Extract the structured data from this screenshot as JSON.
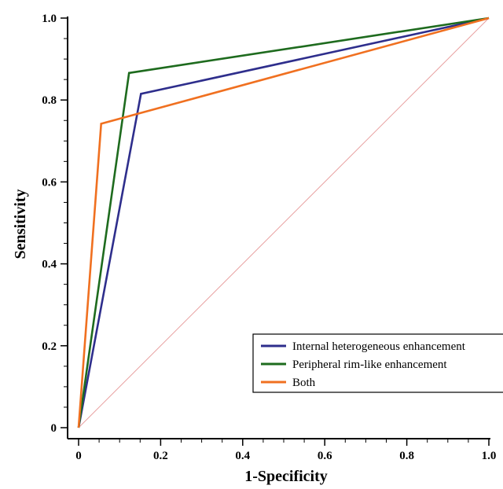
{
  "chart_data": {
    "type": "line",
    "title": "",
    "xlabel": "1-Specificity",
    "ylabel": "Sensitivity",
    "xlim": [
      0,
      1.0
    ],
    "ylim": [
      0,
      1.0
    ],
    "x_ticks": [
      "0",
      "0.2",
      "0.4",
      "0.6",
      "0.8",
      "1.0"
    ],
    "y_ticks": [
      "0",
      "0.2",
      "0.4",
      "0.6",
      "0.8",
      "1.0"
    ],
    "grid": false,
    "legend_position": "bottom-right",
    "series": [
      {
        "name": "Internal heterogeneous enhancement",
        "color": "#2e2e8c",
        "points": [
          [
            0,
            0
          ],
          [
            0.152,
            0.815
          ],
          [
            1.0,
            1.0
          ]
        ]
      },
      {
        "name": "Peripheral rim-like enhancement",
        "color": "#1e6b1e",
        "points": [
          [
            0,
            0
          ],
          [
            0.123,
            0.866
          ],
          [
            1.0,
            1.0
          ]
        ]
      },
      {
        "name": "Both",
        "color": "#f07020",
        "points": [
          [
            0,
            0
          ],
          [
            0.055,
            0.742
          ],
          [
            1.0,
            1.0
          ]
        ]
      }
    ],
    "reference_line": {
      "color": "#e8a0a0",
      "points": [
        [
          0,
          0
        ],
        [
          1.0,
          1.0
        ]
      ]
    }
  }
}
